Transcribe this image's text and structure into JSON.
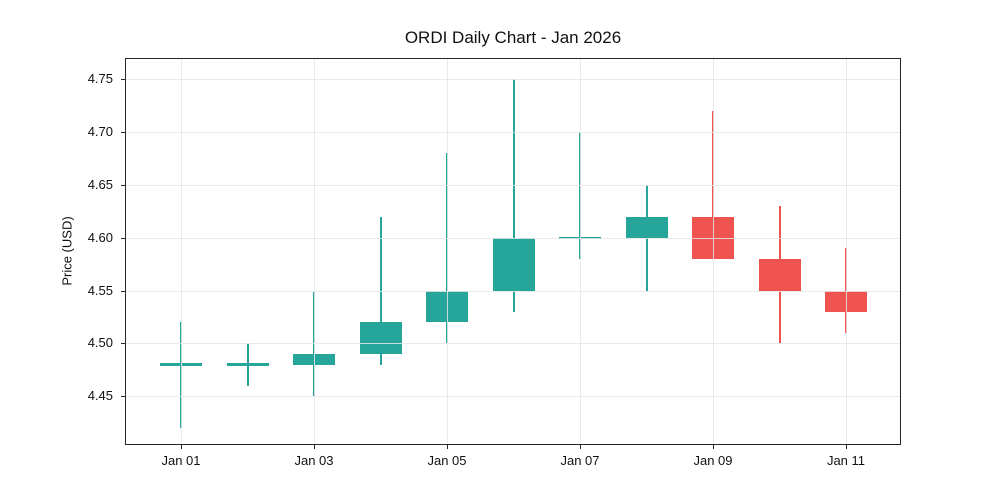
{
  "chart_data": {
    "type": "candlestick",
    "title": "ORDI Daily Chart - Jan 2026",
    "ylabel": "Price (USD)",
    "xlabel": "",
    "grid": true,
    "legend": false,
    "ylim": [
      4.404,
      4.77
    ],
    "up_color": "#26a69a",
    "down_color": "#ef5350",
    "grid_color": "#e5e5e5",
    "axis_color": "#262626",
    "yticks": [
      {
        "label": "4.45",
        "value": 4.45
      },
      {
        "label": "4.50",
        "value": 4.5
      },
      {
        "label": "4.55",
        "value": 4.55
      },
      {
        "label": "4.60",
        "value": 4.6
      },
      {
        "label": "4.65",
        "value": 4.65
      },
      {
        "label": "4.70",
        "value": 4.7
      },
      {
        "label": "4.75",
        "value": 4.75
      }
    ],
    "xticks": [
      {
        "label": "Jan 01",
        "index": 0
      },
      {
        "label": "Jan 03",
        "index": 2
      },
      {
        "label": "Jan 05",
        "index": 4
      },
      {
        "label": "Jan 07",
        "index": 6
      },
      {
        "label": "Jan 09",
        "index": 8
      },
      {
        "label": "Jan 11",
        "index": 10
      }
    ],
    "candles": [
      {
        "date": "Jan 01",
        "open": 4.48,
        "high": 4.52,
        "low": 4.42,
        "close": 4.48
      },
      {
        "date": "Jan 02",
        "open": 4.48,
        "high": 4.5,
        "low": 4.46,
        "close": 4.48
      },
      {
        "date": "Jan 03",
        "open": 4.48,
        "high": 4.55,
        "low": 4.45,
        "close": 4.49
      },
      {
        "date": "Jan 04",
        "open": 4.49,
        "high": 4.62,
        "low": 4.48,
        "close": 4.52
      },
      {
        "date": "Jan 05",
        "open": 4.52,
        "high": 4.68,
        "low": 4.5,
        "close": 4.55
      },
      {
        "date": "Jan 06",
        "open": 4.55,
        "high": 4.75,
        "low": 4.53,
        "close": 4.6
      },
      {
        "date": "Jan 07",
        "open": 4.6,
        "high": 4.7,
        "low": 4.58,
        "close": 4.6
      },
      {
        "date": "Jan 08",
        "open": 4.6,
        "high": 4.65,
        "low": 4.55,
        "close": 4.62
      },
      {
        "date": "Jan 09",
        "open": 4.62,
        "high": 4.72,
        "low": 4.58,
        "close": 4.58
      },
      {
        "date": "Jan 10",
        "open": 4.58,
        "high": 4.63,
        "low": 4.5,
        "close": 4.55
      },
      {
        "date": "Jan 11",
        "open": 4.55,
        "high": 4.59,
        "low": 4.51,
        "close": 4.53
      }
    ]
  }
}
